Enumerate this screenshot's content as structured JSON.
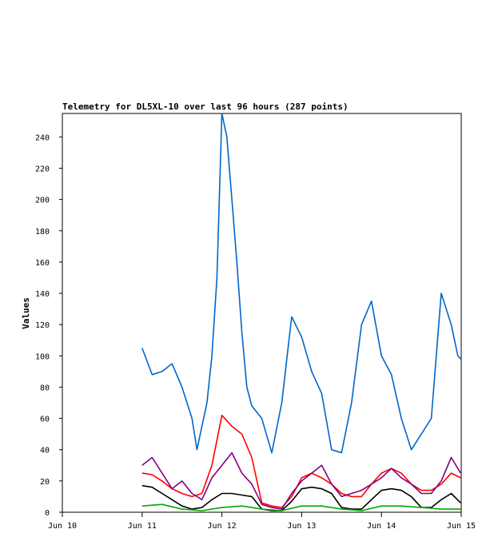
{
  "chart_data": {
    "type": "line",
    "title": "Telemetry for DL5XL-10 over last 96 hours (287 points)",
    "ylabel": "Values",
    "xlabel": "",
    "x_ticks": [
      "Jun 10",
      "Jun 11",
      "Jun 12",
      "Jun 13",
      "Jun 14",
      "Jun 15"
    ],
    "y_ticks": [
      0,
      20,
      40,
      60,
      80,
      100,
      120,
      140,
      160,
      180,
      200,
      220,
      240
    ],
    "xlim": [
      "Jun 10 00:00",
      "Jun 15 00:00"
    ],
    "ylim": [
      0,
      255
    ],
    "grid": false,
    "legend": "none",
    "series": [
      {
        "color": "#0066cc",
        "x": [
          "Jun 11 00:00",
          "Jun 11 03:00",
          "Jun 11 06:00",
          "Jun 11 09:00",
          "Jun 11 12:00",
          "Jun 11 15:00",
          "Jun 11 16:30",
          "Jun 11 18:00",
          "Jun 11 19:30",
          "Jun 11 21:00",
          "Jun 11 22:30",
          "Jun 12 00:00",
          "Jun 12 01:30",
          "Jun 12 03:00",
          "Jun 12 04:30",
          "Jun 12 06:00",
          "Jun 12 07:30",
          "Jun 12 09:00",
          "Jun 12 12:00",
          "Jun 12 15:00",
          "Jun 12 18:00",
          "Jun 12 21:00",
          "Jun 13 00:00",
          "Jun 13 03:00",
          "Jun 13 06:00",
          "Jun 13 09:00",
          "Jun 13 12:00",
          "Jun 13 15:00",
          "Jun 13 18:00",
          "Jun 13 21:00",
          "Jun 14 00:00",
          "Jun 14 03:00",
          "Jun 14 06:00",
          "Jun 14 09:00",
          "Jun 14 12:00",
          "Jun 14 15:00",
          "Jun 14 18:00",
          "Jun 14 21:00",
          "Jun 14 23:00",
          "Jun 14 23:50"
        ],
        "values": [
          105,
          88,
          90,
          95,
          80,
          60,
          40,
          55,
          70,
          100,
          150,
          255,
          240,
          200,
          160,
          115,
          80,
          68,
          60,
          38,
          70,
          125,
          112,
          90,
          76,
          40,
          38,
          70,
          120,
          135,
          100,
          88,
          60,
          40,
          50,
          60,
          140,
          120,
          100,
          98
        ]
      },
      {
        "color": "#ff0000",
        "x": [
          "Jun 11 00:00",
          "Jun 11 03:00",
          "Jun 11 06:00",
          "Jun 11 09:00",
          "Jun 11 12:00",
          "Jun 11 15:00",
          "Jun 11 18:00",
          "Jun 11 21:00",
          "Jun 12 00:00",
          "Jun 12 03:00",
          "Jun 12 06:00",
          "Jun 12 09:00",
          "Jun 12 12:00",
          "Jun 12 15:00",
          "Jun 12 18:00",
          "Jun 12 21:00",
          "Jun 13 00:00",
          "Jun 13 03:00",
          "Jun 13 06:00",
          "Jun 13 09:00",
          "Jun 13 12:00",
          "Jun 13 15:00",
          "Jun 13 18:00",
          "Jun 13 21:00",
          "Jun 14 00:00",
          "Jun 14 03:00",
          "Jun 14 06:00",
          "Jun 14 09:00",
          "Jun 14 12:00",
          "Jun 14 15:00",
          "Jun 14 18:00",
          "Jun 14 21:00",
          "Jun 14 23:50"
        ],
        "values": [
          25,
          24,
          20,
          15,
          12,
          10,
          12,
          30,
          62,
          55,
          50,
          35,
          6,
          4,
          3,
          10,
          22,
          25,
          22,
          18,
          12,
          10,
          10,
          18,
          25,
          28,
          25,
          18,
          14,
          14,
          18,
          25,
          22
        ]
      },
      {
        "color": "#800080",
        "x": [
          "Jun 11 00:00",
          "Jun 11 03:00",
          "Jun 11 06:00",
          "Jun 11 09:00",
          "Jun 11 12:00",
          "Jun 11 15:00",
          "Jun 11 18:00",
          "Jun 11 21:00",
          "Jun 12 00:00",
          "Jun 12 03:00",
          "Jun 12 06:00",
          "Jun 12 09:00",
          "Jun 12 12:00",
          "Jun 12 15:00",
          "Jun 12 18:00",
          "Jun 12 21:00",
          "Jun 13 00:00",
          "Jun 13 03:00",
          "Jun 13 06:00",
          "Jun 13 09:00",
          "Jun 13 12:00",
          "Jun 13 15:00",
          "Jun 13 18:00",
          "Jun 13 21:00",
          "Jun 14 00:00",
          "Jun 14 03:00",
          "Jun 14 06:00",
          "Jun 14 09:00",
          "Jun 14 12:00",
          "Jun 14 15:00",
          "Jun 14 18:00",
          "Jun 14 21:00",
          "Jun 14 23:50"
        ],
        "values": [
          30,
          35,
          25,
          15,
          20,
          12,
          8,
          22,
          30,
          38,
          25,
          18,
          5,
          3,
          2,
          12,
          20,
          25,
          30,
          18,
          10,
          12,
          14,
          18,
          22,
          28,
          22,
          18,
          12,
          12,
          20,
          35,
          25
        ]
      },
      {
        "color": "#000000",
        "x": [
          "Jun 11 00:00",
          "Jun 11 03:00",
          "Jun 11 06:00",
          "Jun 11 09:00",
          "Jun 11 12:00",
          "Jun 11 15:00",
          "Jun 11 18:00",
          "Jun 11 21:00",
          "Jun 12 00:00",
          "Jun 12 03:00",
          "Jun 12 06:00",
          "Jun 12 09:00",
          "Jun 12 12:00",
          "Jun 12 15:00",
          "Jun 12 18:00",
          "Jun 12 21:00",
          "Jun 13 00:00",
          "Jun 13 03:00",
          "Jun 13 06:00",
          "Jun 13 09:00",
          "Jun 13 12:00",
          "Jun 13 15:00",
          "Jun 13 18:00",
          "Jun 13 21:00",
          "Jun 14 00:00",
          "Jun 14 03:00",
          "Jun 14 06:00",
          "Jun 14 09:00",
          "Jun 14 12:00",
          "Jun 14 15:00",
          "Jun 14 18:00",
          "Jun 14 21:00",
          "Jun 14 23:50"
        ],
        "values": [
          17,
          16,
          12,
          8,
          4,
          2,
          3,
          8,
          12,
          12,
          11,
          10,
          2,
          1,
          1,
          7,
          15,
          16,
          15,
          12,
          3,
          2,
          2,
          8,
          14,
          15,
          14,
          10,
          3,
          3,
          8,
          12,
          6
        ]
      },
      {
        "color": "#00aa00",
        "x": [
          "Jun 11 00:00",
          "Jun 11 06:00",
          "Jun 11 12:00",
          "Jun 11 18:00",
          "Jun 12 00:00",
          "Jun 12 06:00",
          "Jun 12 12:00",
          "Jun 12 18:00",
          "Jun 13 00:00",
          "Jun 13 06:00",
          "Jun 13 12:00",
          "Jun 13 18:00",
          "Jun 14 00:00",
          "Jun 14 06:00",
          "Jun 14 12:00",
          "Jun 14 18:00",
          "Jun 14 23:50"
        ],
        "values": [
          4,
          5,
          2,
          1,
          3,
          4,
          2,
          1,
          4,
          4,
          2,
          1,
          4,
          4,
          3,
          2,
          2
        ]
      }
    ]
  }
}
